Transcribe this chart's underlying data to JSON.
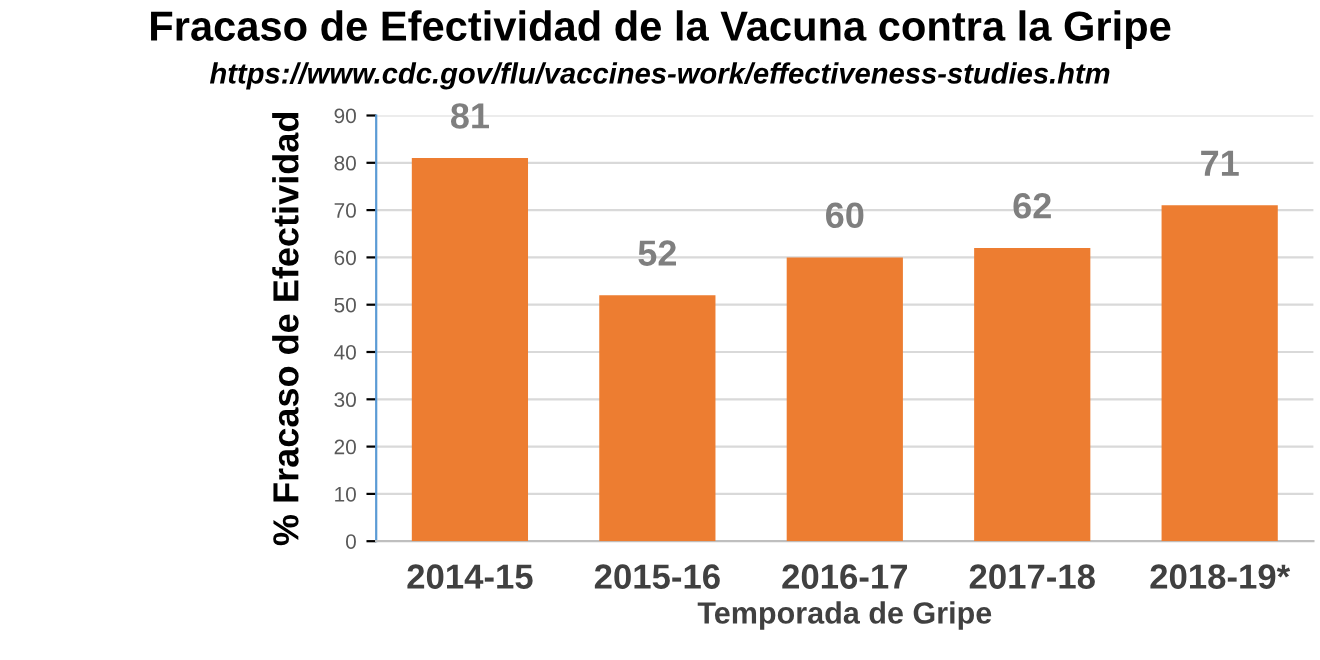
{
  "chart_data": {
    "type": "bar",
    "title": "Fracaso de Efectividad de la Vacuna contra la Gripe",
    "subtitle": "https://www.cdc.gov/flu/vaccines-work/effectiveness-studies.htm",
    "xlabel": "Temporada de Gripe",
    "ylabel": "% Fracaso de Efectividad",
    "categories": [
      "2014-15",
      "2015-16",
      "2016-17",
      "2017-18",
      "2018-19*"
    ],
    "values": [
      81,
      52,
      60,
      62,
      71
    ],
    "color": "#ed7d31",
    "ylim": [
      0,
      90
    ],
    "yticks": [
      0,
      10,
      20,
      30,
      40,
      50,
      60,
      70,
      80,
      90
    ],
    "grid": "y",
    "data_labels": true
  }
}
